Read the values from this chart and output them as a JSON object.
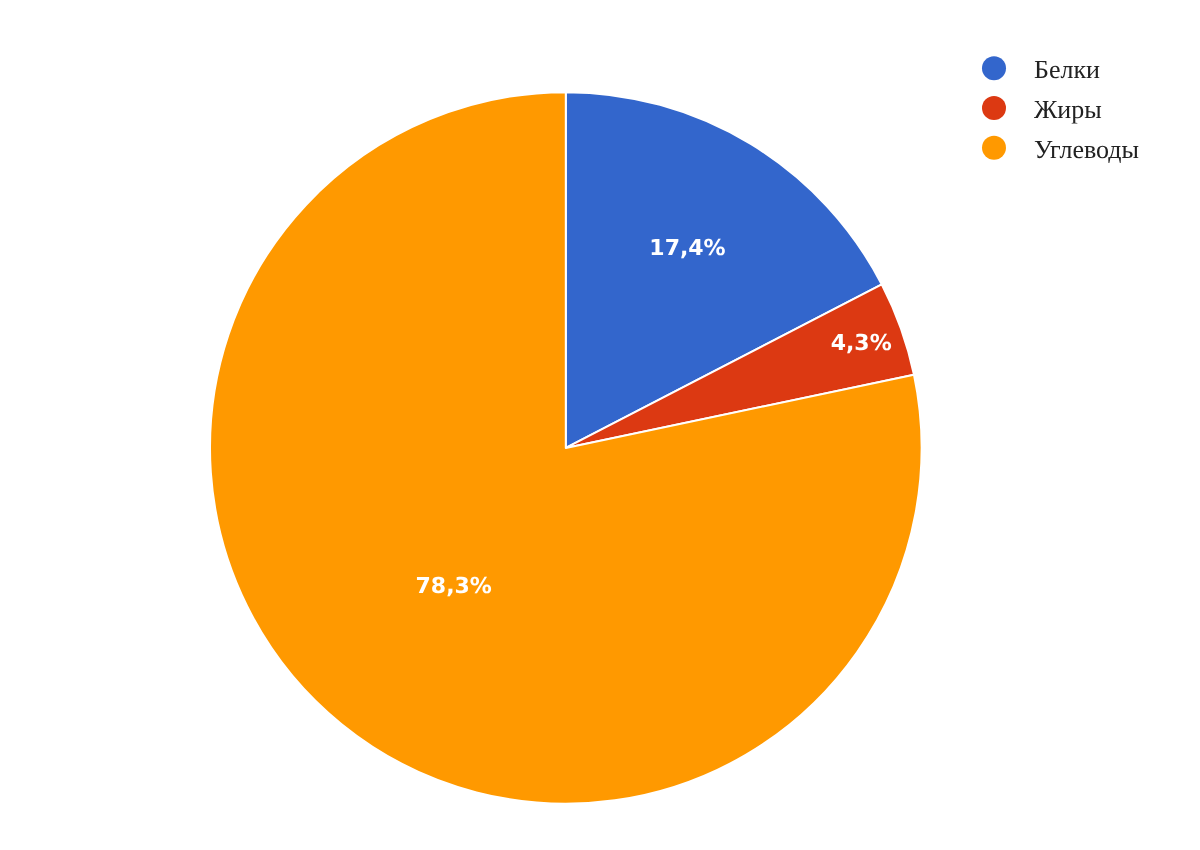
{
  "chart_data": {
    "type": "pie",
    "categories": [
      "Белки",
      "Жиры",
      "Углеводы"
    ],
    "values": [
      17.4,
      4.3,
      78.3
    ],
    "colors": [
      "#3366cc",
      "#dc3912",
      "#ff9900"
    ],
    "value_labels": [
      "17,4%",
      "4,3%",
      "78,3%"
    ],
    "legend": "top right"
  }
}
